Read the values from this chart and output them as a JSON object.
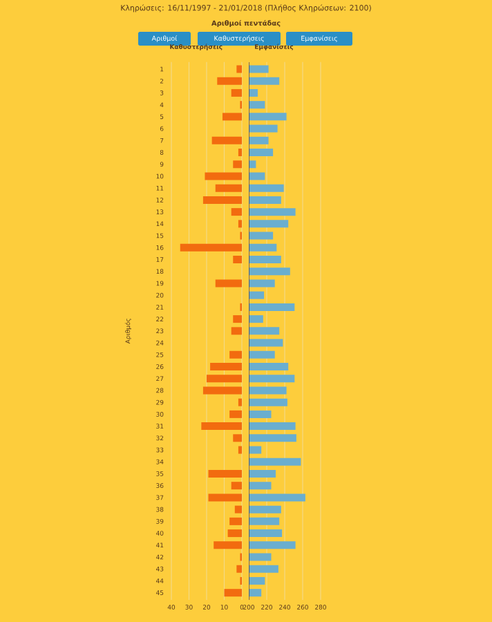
{
  "chart_data": [
    {
      "type": "other",
      "title": "Κληρώσεις: 16/11/1997 - 21/01/2018 (Πλήθος Κληρώσεων: 2100)",
      "subtitle": "Αριθμοί πεντάδας",
      "annotations": [
        "Αριθμοί",
        "Καθυστερήσεις",
        "Εμφανίσεις"
      ]
    },
    {
      "type": "bar",
      "orientation": "horizontal",
      "title": "Καθυστερήσεις",
      "ylabel": "Αριθμός",
      "grid": "x",
      "categories": [
        "1",
        "2",
        "3",
        "4",
        "5",
        "6",
        "7",
        "8",
        "9",
        "10",
        "11",
        "12",
        "13",
        "14",
        "15",
        "16",
        "17",
        "18",
        "19",
        "20",
        "21",
        "22",
        "23",
        "24",
        "25",
        "26",
        "27",
        "28",
        "29",
        "30",
        "31",
        "32",
        "33",
        "34",
        "35",
        "36",
        "37",
        "38",
        "39",
        "40",
        "41",
        "42",
        "43",
        "44",
        "45"
      ],
      "xlim": [
        40,
        0
      ],
      "xticks": [
        40,
        30,
        20,
        10,
        0
      ],
      "color": "#f26b0f",
      "values": [
        3,
        14,
        6,
        1,
        11,
        0,
        17,
        2,
        5,
        21,
        15,
        22,
        6,
        2,
        1,
        35,
        5,
        0,
        15,
        0,
        1,
        5,
        6,
        0,
        7,
        18,
        20,
        22,
        2,
        7,
        23,
        5,
        2,
        0,
        19,
        6,
        19,
        4,
        7,
        8,
        16,
        1,
        3,
        1,
        10
      ]
    },
    {
      "type": "bar",
      "orientation": "horizontal",
      "title": "Εμφανίσεις",
      "grid": "x",
      "tick_labels": "x",
      "categories": [
        "1",
        "2",
        "3",
        "4",
        "5",
        "6",
        "7",
        "8",
        "9",
        "10",
        "11",
        "12",
        "13",
        "14",
        "15",
        "16",
        "17",
        "18",
        "19",
        "20",
        "21",
        "22",
        "23",
        "24",
        "25",
        "26",
        "27",
        "28",
        "29",
        "30",
        "31",
        "32",
        "33",
        "34",
        "35",
        "36",
        "37",
        "38",
        "39",
        "40",
        "41",
        "42",
        "43",
        "44",
        "45"
      ],
      "xlim": [
        200,
        280
      ],
      "xticks": [
        200,
        220,
        240,
        260,
        280
      ],
      "color": "#6aaecf",
      "values": [
        222,
        234,
        210,
        218,
        242,
        232,
        222,
        227,
        208,
        218,
        239,
        236,
        252,
        244,
        227,
        231,
        236,
        246,
        229,
        217,
        251,
        216,
        234,
        238,
        229,
        244,
        251,
        242,
        243,
        225,
        252,
        253,
        214,
        258,
        230,
        225,
        263,
        236,
        234,
        237,
        252,
        225,
        233,
        218,
        214
      ]
    }
  ]
}
